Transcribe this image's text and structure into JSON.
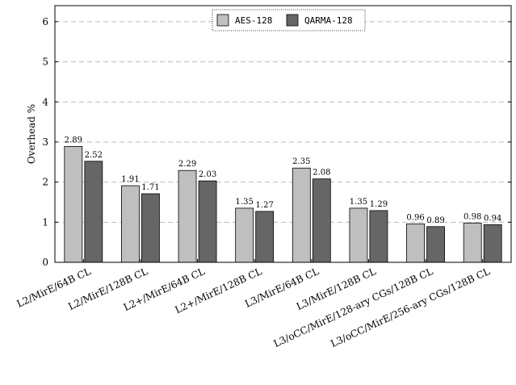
{
  "chart_data": {
    "type": "bar",
    "title": "",
    "xlabel": "",
    "ylabel": "Overhead %",
    "ylim": [
      0,
      6.4
    ],
    "yticks": [
      "0",
      "1",
      "2",
      "3",
      "4",
      "5",
      "6"
    ],
    "grid": true,
    "legend_position": "top-center",
    "categories": [
      "L2/MirE/64B CL",
      "L2/MirE/128B CL",
      "L2+/MirE/64B CL",
      "L2+/MirE/128B CL",
      "L3/MirE/64B CL",
      "L3/MirE/128B CL",
      "L3/oCC/MirE/128-ary CGs/128B CL",
      "L3/oCC/MirE/256-ary CGs/128B CL"
    ],
    "series": [
      {
        "name": "AES-128",
        "color": "#bfbfbf",
        "values": [
          2.89,
          1.91,
          2.29,
          1.35,
          2.35,
          1.35,
          0.96,
          0.98
        ],
        "labels": [
          "2.89",
          "1.91",
          "2.29",
          "1.35",
          "2.35",
          "1.35",
          "0.96",
          "0.98"
        ]
      },
      {
        "name": "QARMA-128",
        "color": "#666666",
        "values": [
          2.52,
          1.71,
          2.03,
          1.27,
          2.08,
          1.29,
          0.89,
          0.94
        ],
        "labels": [
          "2.52",
          "1.71",
          "2.03",
          "1.27",
          "2.08",
          "1.29",
          "0.89",
          "0.94"
        ]
      }
    ]
  }
}
